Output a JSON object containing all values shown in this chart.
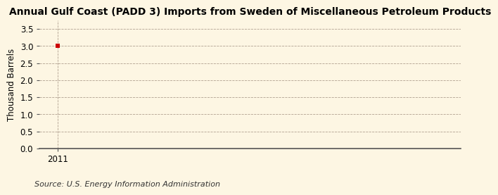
{
  "title": "Annual Gulf Coast (PADD 3) Imports from Sweden of Miscellaneous Petroleum Products",
  "ylabel": "Thousand Barrels",
  "source": "Source: U.S. Energy Information Administration",
  "x_data": [
    2011
  ],
  "y_data": [
    3.0
  ],
  "xlim": [
    2010.5,
    2022.0
  ],
  "ylim": [
    0.0,
    3.75
  ],
  "yticks": [
    0.0,
    0.5,
    1.0,
    1.5,
    2.0,
    2.5,
    3.0,
    3.5
  ],
  "xticks": [
    2011
  ],
  "data_color": "#cc0000",
  "background_color": "#fdf6e3",
  "grid_color": "#b0a090",
  "title_fontsize": 10,
  "label_fontsize": 8.5,
  "tick_fontsize": 8.5,
  "source_fontsize": 8
}
